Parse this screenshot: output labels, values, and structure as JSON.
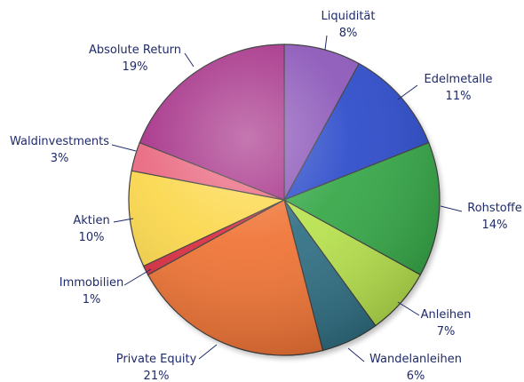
{
  "chart_data": {
    "type": "pie",
    "title": "",
    "unit": "%",
    "start_angle_deg": 0,
    "direction": "clockwise",
    "slices": [
      {
        "label": "Liquidität",
        "value": 8,
        "value_label": "8%",
        "color": "#8a55b8"
      },
      {
        "label": "Edelmetalle",
        "value": 11,
        "value_label": "11%",
        "color": "#2a49c9"
      },
      {
        "label": "Rohstoffe",
        "value": 14,
        "value_label": "14%",
        "color": "#33a645"
      },
      {
        "label": "Anleihen",
        "value": 7,
        "value_label": "7%",
        "color": "#b7e24c"
      },
      {
        "label": "Wandelanleihen",
        "value": 6,
        "value_label": "6%",
        "color": "#2e6e82"
      },
      {
        "label": "Private Equity",
        "value": 21,
        "value_label": "21%",
        "color": "#ef7233"
      },
      {
        "label": "Immobilien",
        "value": 1,
        "value_label": "1%",
        "color": "#d92b3f"
      },
      {
        "label": "Aktien",
        "value": 10,
        "value_label": "10%",
        "color": "#fbd74a"
      },
      {
        "label": "Waldinvestments",
        "value": 3,
        "value_label": "3%",
        "color": "#e9667e"
      },
      {
        "label": "Absolute Return",
        "value": 19,
        "value_label": "19%",
        "color": "#a52f87"
      }
    ]
  }
}
